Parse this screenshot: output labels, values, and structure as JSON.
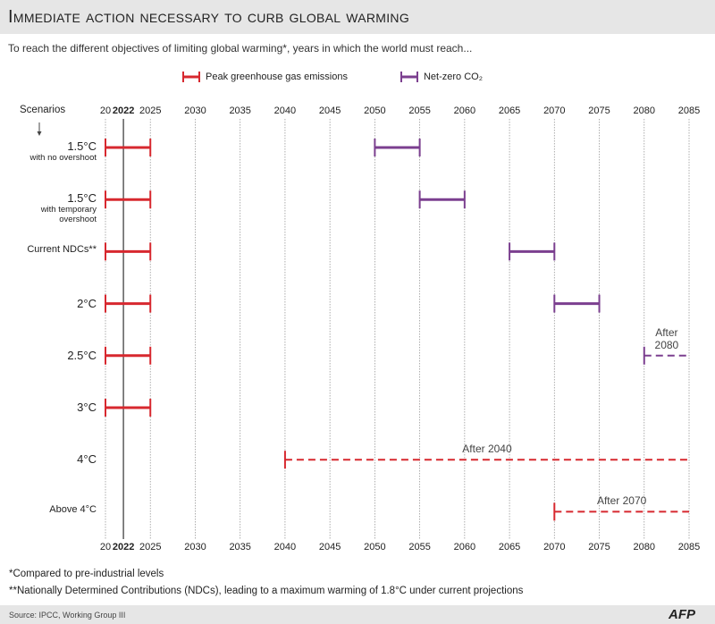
{
  "chart_data": {
    "type": "range",
    "title": "Immediate action necessary to curb global warming",
    "subtitle": "To reach the different objectives of limiting global warming*, years in which the world must reach...",
    "category_header": "Scenarios",
    "categories": [
      "1.5°C",
      "1.5°C",
      "Current NDCs**",
      "2°C",
      "2.5°C",
      "3°C",
      "4°C",
      "Above 4°C"
    ],
    "category_notes": [
      "with no overshoot",
      "with temporary overshoot",
      null,
      null,
      null,
      null,
      null,
      null
    ],
    "series": [
      {
        "name": "Peak greenhouse gas emissions",
        "color": "#d7282f",
        "values": [
          [
            2020,
            2025
          ],
          [
            2020,
            2025
          ],
          [
            2020,
            2025
          ],
          [
            2020,
            2025
          ],
          [
            2020,
            2025
          ],
          [
            2020,
            2025
          ],
          [
            2040,
            null
          ],
          [
            2070,
            null
          ]
        ],
        "value_labels": [
          null,
          null,
          null,
          null,
          null,
          null,
          "After 2040",
          "After 2070"
        ]
      },
      {
        "name": "Net-zero CO₂",
        "color": "#7b3f8f",
        "values": [
          [
            2050,
            2055
          ],
          [
            2055,
            2060
          ],
          [
            2065,
            2070
          ],
          [
            2070,
            2075
          ],
          [
            2080,
            null
          ],
          null,
          null,
          null
        ],
        "value_labels": [
          null,
          null,
          null,
          null,
          "After 2080",
          null,
          null,
          null
        ]
      }
    ],
    "xlim": [
      2020,
      2085
    ],
    "xticks": [
      {
        "value": 2020,
        "label": "20"
      },
      2025,
      2030,
      2035,
      2040,
      2045,
      2050,
      2055,
      2060,
      2065,
      2070,
      2075,
      2080,
      2085
    ],
    "highlight_x": {
      "value": 2022,
      "label": "2022"
    },
    "grid": true,
    "footnotes": [
      "*Compared to pre-industrial levels",
      "**Nationally Determined Contributions (NDCs), leading to a maximum warming of 1.8°C under current projections"
    ],
    "source": "Source: IPCC, Working Group III",
    "logo": "AFP"
  }
}
